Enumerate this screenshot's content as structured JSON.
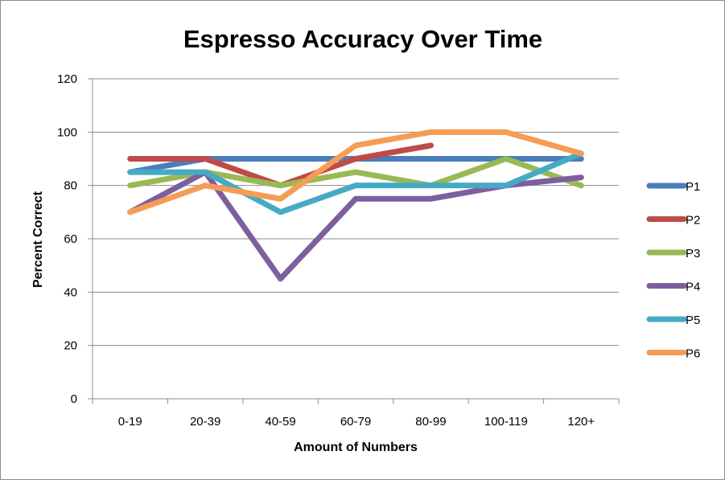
{
  "chart_data": {
    "type": "line",
    "title": "Espresso Accuracy Over Time",
    "xlabel": "Amount of Numbers",
    "ylabel": "Percent Correct",
    "categories": [
      "0-19",
      "20-39",
      "40-59",
      "60-79",
      "80-99",
      "100-119",
      "120+"
    ],
    "ylim": [
      0,
      120
    ],
    "yticks": [
      0,
      20,
      40,
      60,
      80,
      100,
      120
    ],
    "grid": true,
    "legend_position": "right",
    "series": [
      {
        "name": "P1",
        "color": "#4a7ebb",
        "values": [
          85,
          90,
          90,
          90,
          90,
          90,
          90
        ]
      },
      {
        "name": "P2",
        "color": "#be4b48",
        "values": [
          90,
          90,
          80,
          90,
          95,
          null,
          null
        ]
      },
      {
        "name": "P3",
        "color": "#98b954",
        "values": [
          80,
          85,
          80,
          85,
          80,
          90,
          80
        ]
      },
      {
        "name": "P4",
        "color": "#7d5fa0",
        "values": [
          70,
          85,
          45,
          75,
          75,
          80,
          83
        ]
      },
      {
        "name": "P5",
        "color": "#46aac5",
        "values": [
          85,
          85,
          70,
          80,
          80,
          80,
          92
        ]
      },
      {
        "name": "P6",
        "color": "#f59d56",
        "values": [
          70,
          80,
          75,
          95,
          100,
          100,
          92
        ]
      }
    ]
  }
}
